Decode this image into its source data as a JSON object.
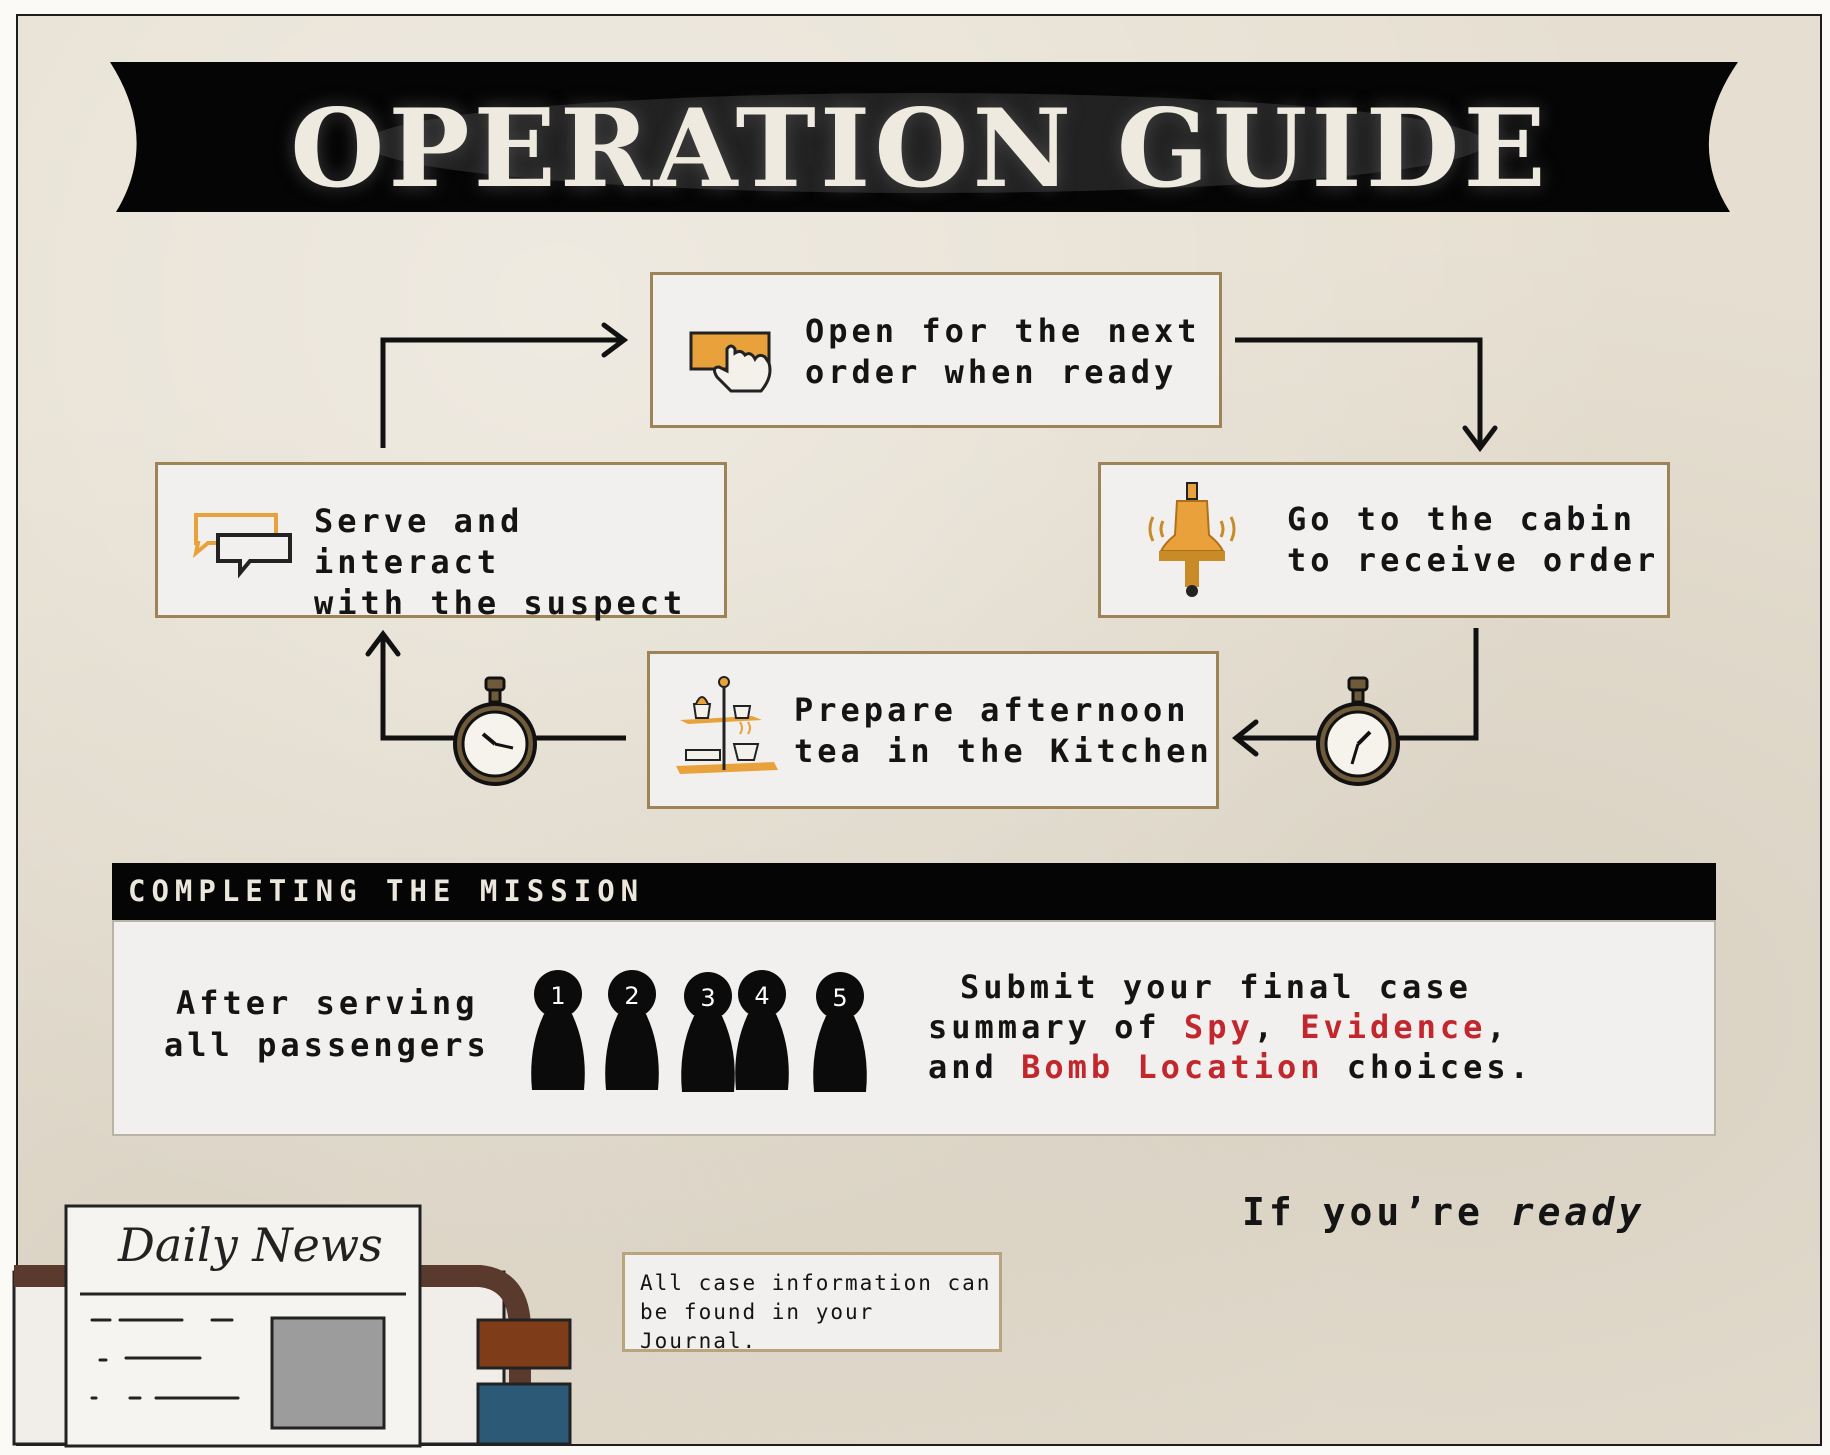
{
  "title": "OPERATION GUIDE",
  "steps": {
    "open": "Open for the next\norder when ready",
    "cabin": "Go to the cabin\nto receive order",
    "kitchen": "Prepare afternoon\ntea in the Kitchen",
    "serve": "Serve and interact\nwith the suspect"
  },
  "mission": {
    "heading": "COMPLETING THE MISSION",
    "after_line1": "After serving",
    "after_line2": "all passengers",
    "passengers": [
      "1",
      "2",
      "3",
      "4",
      "5"
    ],
    "submit_line1": "Submit your final case",
    "submit_line2_a": "summary of ",
    "spy": "Spy",
    "comma1": ", ",
    "evidence": "Evidence",
    "comma2": ",",
    "submit_line3_a": "and ",
    "bomb": "Bomb Location",
    "submit_line3_b": " choices."
  },
  "newspaper": {
    "title": "Daily News"
  },
  "note": {
    "line1": "All case information can",
    "line2": "be found in your Journal."
  },
  "ready": {
    "prefix": "If you’re ",
    "word": "ready"
  },
  "colors": {
    "highlight_red": "#c1272d",
    "box_border": "#9c8457",
    "paper": "#e6dfd1",
    "accent_orange": "#e9a23b"
  }
}
